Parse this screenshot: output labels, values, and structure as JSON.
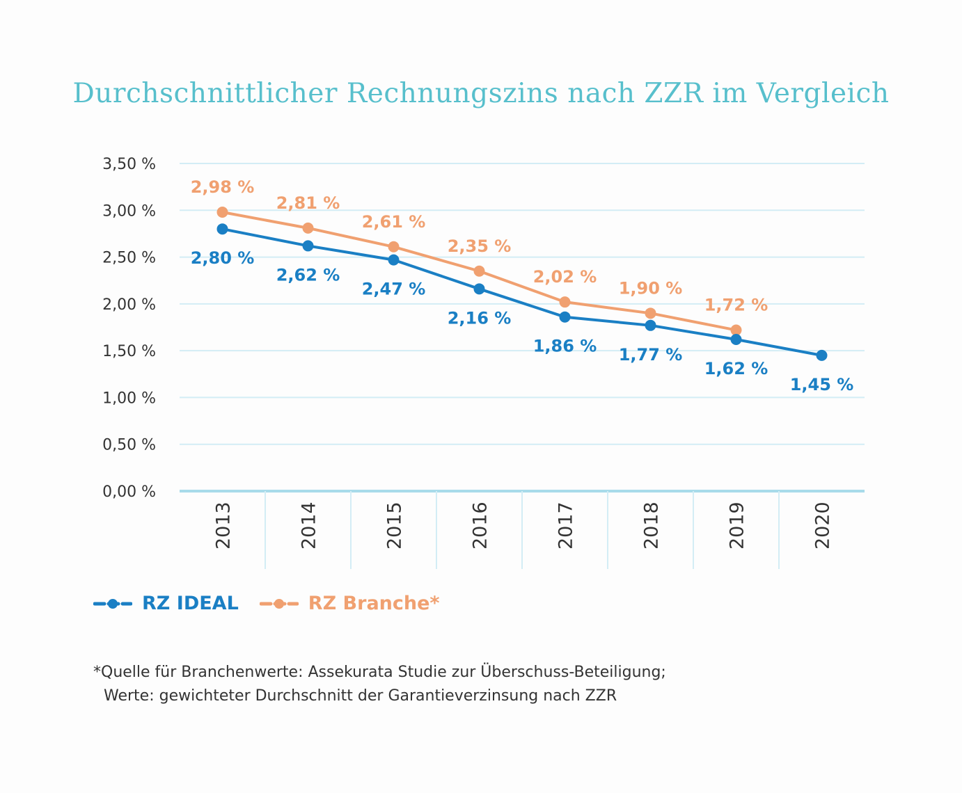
{
  "chart_data": {
    "type": "line",
    "title": "Durchschnittlicher Rechnungszins nach ZZR im Vergleich",
    "x": [
      "2013",
      "2014",
      "2015",
      "2016",
      "2017",
      "2018",
      "2019",
      "2020"
    ],
    "ylim": [
      0,
      3.5
    ],
    "yticks": [
      "0,00 %",
      "0,50 %",
      "1,00 %",
      "1,50 %",
      "2,00 %",
      "2,50 %",
      "3,00 %",
      "3,50 %"
    ],
    "ytick_values": [
      0,
      0.5,
      1,
      1.5,
      2,
      2.5,
      3,
      3.5
    ],
    "grid": true,
    "legend_position": "bottom-left",
    "series": [
      {
        "name": "RZ IDEAL",
        "color": "#1a7fc4",
        "values": [
          2.8,
          2.62,
          2.47,
          2.16,
          1.86,
          1.77,
          1.62,
          1.45
        ],
        "labels": [
          "2,80 %",
          "2,62 %",
          "2,47 %",
          "2,16 %",
          "1,86 %",
          "1,77 %",
          "1,62 %",
          "1,45 %"
        ]
      },
      {
        "name": "RZ Branche*",
        "color": "#f0a070",
        "values": [
          2.98,
          2.81,
          2.61,
          2.35,
          2.02,
          1.9,
          1.72,
          null
        ],
        "labels": [
          "2,98 %",
          "2,81 %",
          "2,61 %",
          "2,35 %",
          "2,02 %",
          "1,90 %",
          "1,72 %",
          null
        ]
      }
    ]
  },
  "colors": {
    "title": "#57bfcc",
    "grid": "#d3edf5",
    "axis": "#a8dbea",
    "ideal": "#1a7fc4",
    "branche": "#f0a070",
    "text": "#333333"
  },
  "legend": {
    "ideal_label": "RZ IDEAL",
    "branche_label": "RZ Branche*"
  },
  "footnote": {
    "marker": "*",
    "line1": "Quelle für Branchenwerte: Assekurata Studie zur Überschuss-Beteiligung;",
    "line2": "Werte: gewichteter Durchschnitt der Garantieverzinsung nach ZZR"
  }
}
